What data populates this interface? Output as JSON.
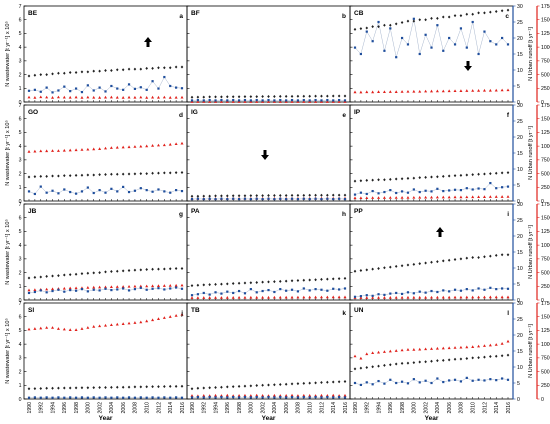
{
  "chart_data": {
    "type": "scatter",
    "years": [
      1990,
      1991,
      1992,
      1993,
      1994,
      1995,
      1996,
      1997,
      1998,
      1999,
      2000,
      2001,
      2002,
      2003,
      2004,
      2005,
      2006,
      2007,
      2008,
      2009,
      2010,
      2011,
      2012,
      2013,
      2014,
      2015,
      2016
    ],
    "x_ticks": [
      "1990",
      "1992",
      "1994",
      "1996",
      "1998",
      "2000",
      "2002",
      "2004",
      "2006",
      "2008",
      "2010",
      "2012",
      "2014",
      "2016"
    ],
    "xlabel": "Year",
    "axes": {
      "wastewater": {
        "label": "N wastewater [t yr⁻¹] x 10⁵",
        "ylim": [
          0,
          7
        ],
        "ticks": [
          "0",
          "1",
          "2",
          "3",
          "4",
          "5",
          "6",
          "7"
        ],
        "color": "#000000"
      },
      "runoff": {
        "label": "N Urban runoff [t yr⁻¹]",
        "ylim": [
          0,
          30
        ],
        "ticks": [
          "0",
          "5",
          "10",
          "15",
          "20",
          "25",
          "30"
        ],
        "color": "#1f4e9c"
      },
      "industrial": {
        "label": "N Industrial [t yr⁻¹]",
        "ylim": [
          0,
          1750
        ],
        "ticks": [
          "0",
          "250",
          "500",
          "750",
          "1000",
          "1250",
          "1500",
          "1750"
        ],
        "color": "#e0201b"
      }
    },
    "series_colors": {
      "wastewater": "#222222",
      "runoff": "#1f4e9c",
      "industrial": "#e0201b"
    },
    "panels": [
      {
        "code": "BE",
        "letter": "a",
        "arrow": "up",
        "wastewater": [
          1.9,
          1.95,
          2.0,
          2.0,
          2.05,
          2.1,
          2.1,
          2.15,
          2.15,
          2.2,
          2.2,
          2.25,
          2.25,
          2.3,
          2.3,
          2.35,
          2.35,
          2.4,
          2.4,
          2.4,
          2.45,
          2.45,
          2.5,
          2.5,
          2.5,
          2.55,
          2.55
        ],
        "runoff": [
          3.5,
          3.8,
          3.2,
          4.5,
          3.0,
          3.6,
          4.8,
          3.4,
          4.2,
          3.1,
          5.2,
          3.6,
          4.5,
          3.3,
          5.0,
          4.2,
          3.8,
          5.5,
          4.1,
          4.6,
          3.8,
          6.5,
          4.2,
          7.8,
          5.0,
          4.5,
          4.3
        ],
        "industrial": [
          85,
          80,
          90,
          85,
          80,
          88,
          84,
          82,
          86,
          80,
          85,
          82,
          80,
          84,
          86,
          82,
          80,
          84,
          82,
          85,
          80,
          84,
          82,
          85,
          80,
          82,
          84
        ]
      },
      {
        "code": "BF",
        "letter": "b",
        "arrow": "",
        "wastewater": [
          0.35,
          0.36,
          0.36,
          0.37,
          0.37,
          0.37,
          0.38,
          0.38,
          0.38,
          0.39,
          0.39,
          0.39,
          0.4,
          0.4,
          0.4,
          0.41,
          0.41,
          0.41,
          0.42,
          0.42,
          0.42,
          0.43,
          0.43,
          0.43,
          0.44,
          0.44,
          0.44
        ],
        "runoff": [
          0.5,
          0.6,
          0.5,
          0.6,
          0.5,
          0.6,
          0.5,
          0.6,
          0.5,
          0.6,
          0.5,
          0.6,
          0.5,
          0.6,
          0.5,
          0.6,
          0.5,
          0.6,
          0.5,
          0.6,
          0.5,
          0.6,
          0.5,
          0.6,
          0.5,
          0.6,
          0.5
        ],
        "industrial": [
          5,
          5,
          5,
          5,
          5,
          5,
          5,
          5,
          5,
          5,
          5,
          5,
          5,
          5,
          5,
          5,
          5,
          5,
          5,
          5,
          5,
          5,
          5,
          5,
          5,
          5,
          5
        ]
      },
      {
        "code": "CB",
        "letter": "c",
        "arrow": "down",
        "wastewater": [
          5.3,
          5.35,
          5.4,
          5.5,
          5.5,
          5.6,
          5.6,
          5.7,
          5.8,
          5.9,
          5.9,
          6.0,
          6.0,
          6.1,
          6.1,
          6.2,
          6.2,
          6.3,
          6.3,
          6.4,
          6.4,
          6.5,
          6.5,
          6.55,
          6.6,
          6.65,
          6.7
        ],
        "runoff": [
          17,
          15,
          22,
          19,
          25,
          16,
          23,
          14,
          20,
          18,
          26,
          15,
          21,
          17,
          24,
          16,
          20,
          18,
          23,
          17,
          25,
          15,
          22,
          19,
          18,
          20,
          18
        ],
        "industrial": [
          180,
          178,
          182,
          180,
          185,
          183,
          186,
          185,
          188,
          190,
          192,
          190,
          195,
          196,
          198,
          197,
          200,
          202,
          203,
          205,
          206,
          208,
          210,
          210,
          212,
          215,
          218
        ]
      },
      {
        "code": "GO",
        "letter": "d",
        "arrow": "",
        "wastewater": [
          1.75,
          1.78,
          1.8,
          1.8,
          1.82,
          1.82,
          1.85,
          1.85,
          1.87,
          1.88,
          1.9,
          1.9,
          1.92,
          1.93,
          1.95,
          1.95,
          1.96,
          1.97,
          1.98,
          2.0,
          2.0,
          2.02,
          2.03,
          2.05,
          2.05,
          2.07,
          2.08
        ],
        "runoff": [
          3.0,
          2.2,
          4.5,
          2.6,
          3.2,
          2.4,
          3.6,
          2.8,
          2.3,
          3.0,
          4.2,
          2.5,
          3.4,
          2.6,
          3.8,
          3.0,
          4.4,
          2.8,
          3.2,
          4.0,
          3.4,
          2.9,
          3.6,
          3.0,
          2.6,
          3.4,
          3.1
        ],
        "industrial": [
          900,
          905,
          910,
          912,
          915,
          915,
          920,
          925,
          930,
          935,
          940,
          945,
          950,
          960,
          970,
          975,
          980,
          985,
          990,
          995,
          1000,
          1010,
          1015,
          1020,
          1030,
          1040,
          1050
        ]
      },
      {
        "code": "IG",
        "letter": "e",
        "arrow": "down",
        "wastewater": [
          0.35,
          0.35,
          0.36,
          0.36,
          0.37,
          0.37,
          0.37,
          0.38,
          0.38,
          0.38,
          0.39,
          0.39,
          0.39,
          0.4,
          0.4,
          0.4,
          0.4,
          0.41,
          0.41,
          0.41,
          0.42,
          0.42,
          0.42,
          0.42,
          0.43,
          0.43,
          0.43
        ],
        "runoff": [
          0.6,
          0.7,
          0.6,
          0.7,
          0.6,
          0.7,
          0.6,
          0.7,
          0.6,
          0.7,
          0.6,
          0.7,
          0.6,
          0.7,
          0.6,
          0.7,
          0.6,
          0.7,
          0.6,
          0.7,
          0.6,
          0.7,
          0.6,
          0.7,
          0.6,
          0.7,
          0.6
        ],
        "industrial": [
          40,
          40,
          40,
          42,
          42,
          42,
          42,
          44,
          44,
          44,
          44,
          45,
          45,
          45,
          46,
          46,
          46,
          46,
          47,
          47,
          47,
          48,
          48,
          48,
          48,
          49,
          49
        ]
      },
      {
        "code": "IP",
        "letter": "f",
        "arrow": "",
        "wastewater": [
          1.45,
          1.48,
          1.5,
          1.52,
          1.55,
          1.55,
          1.58,
          1.6,
          1.62,
          1.65,
          1.67,
          1.7,
          1.72,
          1.75,
          1.77,
          1.8,
          1.82,
          1.85,
          1.87,
          1.9,
          1.92,
          1.95,
          1.97,
          2.0,
          2.02,
          2.05,
          2.07
        ],
        "runoff": [
          2.0,
          2.6,
          2.2,
          3.1,
          2.4,
          2.8,
          3.4,
          2.5,
          3.0,
          2.6,
          3.6,
          2.8,
          3.2,
          3.0,
          3.8,
          3.1,
          3.3,
          3.5,
          3.4,
          4.0,
          3.6,
          3.9,
          3.7,
          5.6,
          4.0,
          4.3,
          4.5
        ],
        "industrial": [
          55,
          56,
          56,
          58,
          58,
          59,
          60,
          60,
          61,
          62,
          63,
          64,
          65,
          66,
          67,
          68,
          69,
          70,
          71,
          72,
          73,
          74,
          75,
          76,
          77,
          78,
          79
        ]
      },
      {
        "code": "JB",
        "letter": "g",
        "arrow": "",
        "wastewater": [
          1.6,
          1.65,
          1.68,
          1.72,
          1.75,
          1.78,
          1.82,
          1.85,
          1.88,
          1.92,
          1.95,
          1.98,
          2.0,
          2.05,
          2.08,
          2.1,
          2.12,
          2.15,
          2.18,
          2.2,
          2.22,
          2.24,
          2.25,
          2.26,
          2.28,
          2.3,
          2.3
        ],
        "runoff": [
          2.2,
          2.5,
          3.0,
          2.4,
          2.8,
          3.2,
          2.6,
          3.1,
          2.9,
          3.4,
          2.7,
          3.2,
          3.0,
          3.5,
          3.1,
          3.3,
          3.6,
          3.0,
          3.4,
          3.8,
          3.2,
          3.5,
          3.7,
          3.3,
          3.6,
          3.9,
          3.5
        ],
        "industrial": [
          180,
          185,
          190,
          195,
          200,
          205,
          210,
          215,
          218,
          220,
          225,
          230,
          232,
          235,
          238,
          240,
          242,
          245,
          248,
          250,
          252,
          255,
          258,
          260,
          262,
          265,
          268
        ]
      },
      {
        "code": "PA",
        "letter": "h",
        "arrow": "",
        "wastewater": [
          1.05,
          1.08,
          1.1,
          1.12,
          1.14,
          1.16,
          1.18,
          1.2,
          1.22,
          1.24,
          1.26,
          1.28,
          1.3,
          1.32,
          1.34,
          1.36,
          1.38,
          1.4,
          1.42,
          1.44,
          1.46,
          1.48,
          1.5,
          1.52,
          1.54,
          1.56,
          1.58
        ],
        "runoff": [
          1.5,
          1.8,
          2.2,
          1.7,
          2.4,
          2.0,
          2.6,
          2.2,
          2.8,
          2.1,
          3.4,
          2.4,
          2.8,
          3.1,
          2.5,
          3.4,
          2.9,
          3.2,
          2.7,
          3.6,
          3.0,
          3.4,
          3.2,
          2.9,
          3.5,
          3.3,
          3.6
        ],
        "industrial": [
          40,
          40,
          41,
          41,
          42,
          42,
          43,
          43,
          44,
          44,
          45,
          45,
          46,
          46,
          47,
          47,
          48,
          48,
          49,
          49,
          50,
          50,
          51,
          51,
          52,
          52,
          53
        ]
      },
      {
        "code": "PP",
        "letter": "i",
        "arrow": "up",
        "wastewater": [
          2.1,
          2.15,
          2.2,
          2.25,
          2.3,
          2.35,
          2.4,
          2.45,
          2.5,
          2.55,
          2.6,
          2.65,
          2.7,
          2.75,
          2.8,
          2.85,
          2.9,
          2.95,
          3.0,
          3.05,
          3.1,
          3.1,
          3.15,
          3.2,
          3.25,
          3.3,
          3.3
        ],
        "runoff": [
          1.0,
          1.2,
          1.5,
          1.3,
          1.8,
          1.6,
          2.0,
          2.2,
          1.9,
          2.4,
          2.1,
          2.6,
          2.3,
          2.8,
          2.5,
          3.0,
          2.7,
          3.2,
          2.9,
          3.4,
          3.0,
          3.6,
          3.2,
          3.8,
          3.4,
          3.6,
          3.5
        ],
        "industrial": [
          40,
          41,
          41,
          42,
          42,
          43,
          43,
          44,
          44,
          45,
          45,
          46,
          46,
          47,
          47,
          48,
          48,
          49,
          49,
          50,
          50,
          51,
          51,
          52,
          52,
          53,
          53
        ]
      },
      {
        "code": "SI",
        "letter": "j",
        "arrow": "",
        "wastewater": [
          0.75,
          0.76,
          0.77,
          0.78,
          0.78,
          0.79,
          0.8,
          0.8,
          0.81,
          0.82,
          0.82,
          0.83,
          0.84,
          0.84,
          0.85,
          0.86,
          0.86,
          0.87,
          0.88,
          0.88,
          0.89,
          0.9,
          0.9,
          0.91,
          0.92,
          0.92,
          0.93
        ],
        "runoff": [
          0.4,
          0.5,
          0.4,
          0.5,
          0.4,
          0.5,
          0.4,
          0.5,
          0.4,
          0.5,
          0.4,
          0.5,
          0.4,
          0.5,
          0.4,
          0.5,
          0.4,
          0.5,
          0.4,
          0.5,
          0.4,
          0.5,
          0.4,
          0.5,
          0.4,
          0.5,
          0.4
        ],
        "industrial": [
          1270,
          1280,
          1290,
          1300,
          1300,
          1280,
          1270,
          1260,
          1260,
          1280,
          1300,
          1320,
          1330,
          1340,
          1350,
          1360,
          1370,
          1380,
          1390,
          1400,
          1420,
          1440,
          1460,
          1480,
          1500,
          1520,
          1540
        ]
      },
      {
        "code": "TB",
        "letter": "k",
        "arrow": "",
        "wastewater": [
          0.75,
          0.78,
          0.8,
          0.82,
          0.84,
          0.86,
          0.88,
          0.9,
          0.92,
          0.94,
          0.96,
          0.98,
          1.0,
          1.02,
          1.04,
          1.06,
          1.08,
          1.1,
          1.12,
          1.14,
          1.16,
          1.18,
          1.2,
          1.22,
          1.24,
          1.26,
          1.28
        ],
        "runoff": [
          0.5,
          0.6,
          0.5,
          0.6,
          0.5,
          0.6,
          0.5,
          0.6,
          0.5,
          0.6,
          0.5,
          0.6,
          0.5,
          0.6,
          0.5,
          0.6,
          0.5,
          0.6,
          0.5,
          0.6,
          0.5,
          0.6,
          0.5,
          0.6,
          0.5,
          0.6,
          0.5
        ],
        "industrial": [
          60,
          55,
          62,
          58,
          64,
          60,
          66,
          58,
          62,
          64,
          60,
          66,
          62,
          58,
          64,
          60,
          62,
          66,
          60,
          64,
          62,
          60,
          64,
          62,
          66,
          60,
          64
        ]
      },
      {
        "code": "UN",
        "letter": "l",
        "arrow": "",
        "wastewater": [
          2.2,
          2.25,
          2.3,
          2.35,
          2.4,
          2.45,
          2.5,
          2.55,
          2.6,
          2.62,
          2.65,
          2.7,
          2.72,
          2.75,
          2.8,
          2.82,
          2.85,
          2.9,
          2.92,
          2.95,
          3.0,
          3.02,
          3.05,
          3.1,
          3.12,
          3.15,
          3.2
        ],
        "runoff": [
          5.0,
          4.4,
          5.2,
          4.6,
          5.6,
          4.8,
          6.0,
          5.0,
          5.4,
          4.9,
          6.2,
          5.2,
          5.7,
          5.0,
          6.4,
          5.3,
          5.8,
          6.0,
          5.5,
          6.6,
          5.7,
          6.0,
          5.8,
          6.2,
          5.9,
          6.4,
          6.0
        ],
        "industrial": [
          780,
          740,
          820,
          840,
          850,
          860,
          870,
          880,
          890,
          900,
          900,
          905,
          910,
          915,
          920,
          925,
          930,
          935,
          940,
          945,
          950,
          960,
          970,
          980,
          990,
          1010,
          1050
        ]
      }
    ]
  }
}
